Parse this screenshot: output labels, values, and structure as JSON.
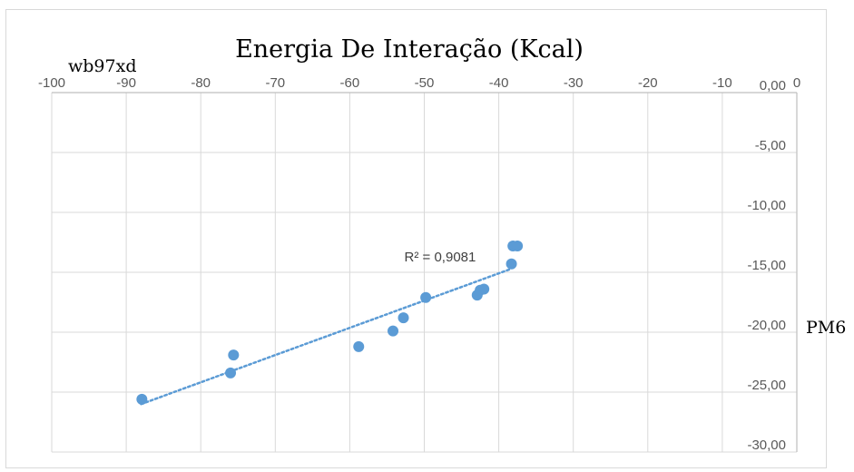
{
  "chart_data": {
    "type": "scatter",
    "title": "Energia De Interação (Kcal)",
    "xlabel": "wb97xd",
    "ylabel": "PM6",
    "xlim": [
      -100,
      0
    ],
    "ylim": [
      -30,
      0
    ],
    "x_ticks": [
      "-100",
      "-90",
      "-80",
      "-70",
      "-60",
      "-50",
      "-40",
      "-30",
      "-20",
      "-10",
      "0"
    ],
    "x_tick_values": [
      -100,
      -90,
      -80,
      -70,
      -60,
      -50,
      -40,
      -30,
      -20,
      -10,
      0
    ],
    "y_ticks": [
      "0,00",
      "-5,00",
      "-10,00",
      "-15,00",
      "-20,00",
      "-25,00",
      "-30,00"
    ],
    "y_tick_values": [
      0,
      -5,
      -10,
      -15,
      -20,
      -25,
      -30
    ],
    "grid": true,
    "points": [
      {
        "x": -87.9,
        "y": -25.6
      },
      {
        "x": -75.6,
        "y": -21.9
      },
      {
        "x": -76.0,
        "y": -23.4
      },
      {
        "x": -58.8,
        "y": -21.2
      },
      {
        "x": -54.2,
        "y": -19.9
      },
      {
        "x": -52.8,
        "y": -18.8
      },
      {
        "x": -49.8,
        "y": -17.1
      },
      {
        "x": -42.9,
        "y": -16.9
      },
      {
        "x": -42.5,
        "y": -16.5
      },
      {
        "x": -42.0,
        "y": -16.4
      },
      {
        "x": -38.3,
        "y": -14.3
      },
      {
        "x": -38.1,
        "y": -12.8
      },
      {
        "x": -37.5,
        "y": -12.8
      }
    ],
    "trendline": {
      "style": "dotted",
      "label": "R² = 0,9081",
      "x": [
        -88.0,
        -38.3
      ],
      "y": [
        -26.0,
        -14.7
      ]
    },
    "colors": {
      "marker": "#5b9bd5",
      "grid": "#d9d9d9",
      "trend": "#5b9bd5"
    }
  }
}
